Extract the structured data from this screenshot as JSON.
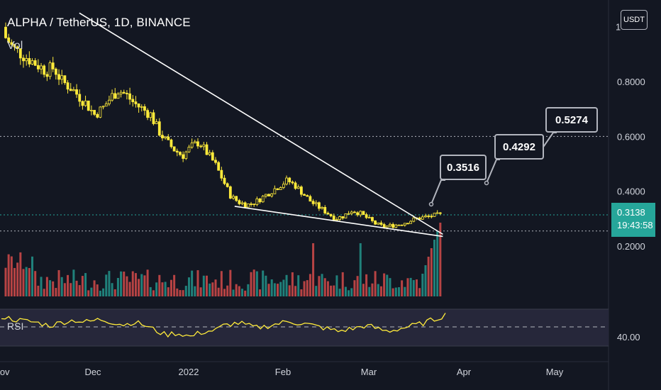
{
  "header": {
    "title": "ALPHA / TetherUS, 1D, BINANCE",
    "volume_label": "Vol",
    "rsi_label": "RSI",
    "currency_button": "USDT"
  },
  "last_price": {
    "value": "0.3138",
    "countdown": "19:43:58"
  },
  "colors": {
    "background": "#131722",
    "up": "#26a69a",
    "down": "#ef5350",
    "candle": "#ffeb3b",
    "rsi_line": "#ffeb3b",
    "trendline": "#ffffff"
  },
  "chart_data": {
    "type": "candlestick",
    "symbol": "ALPHA / TetherUS",
    "interval": "1D",
    "exchange": "BINANCE",
    "y_axis_labels": [
      "1",
      "0.8000",
      "0.6000",
      "0.4000",
      "0.2000"
    ],
    "ylim": [
      0.13,
      1.05
    ],
    "x_axis_labels": [
      "Nov",
      "Dec",
      "2022",
      "Feb",
      "Mar",
      "Apr",
      "May"
    ],
    "horizontal_levels": [
      0.6,
      0.3138,
      0.255
    ],
    "closes_sampled": [
      0.96,
      0.92,
      0.9,
      0.88,
      0.86,
      0.84,
      0.85,
      0.8,
      0.78,
      0.75,
      0.72,
      0.68,
      0.7,
      0.74,
      0.77,
      0.75,
      0.72,
      0.7,
      0.68,
      0.62,
      0.58,
      0.55,
      0.53,
      0.56,
      0.58,
      0.54,
      0.5,
      0.44,
      0.38,
      0.36,
      0.35,
      0.36,
      0.38,
      0.4,
      0.42,
      0.44,
      0.42,
      0.39,
      0.36,
      0.34,
      0.32,
      0.3,
      0.31,
      0.33,
      0.32,
      0.3,
      0.28,
      0.27,
      0.275,
      0.28,
      0.29,
      0.3,
      0.305,
      0.31,
      0.3138
    ],
    "trendlines": [
      {
        "name": "upper",
        "from": [
          0.12,
          1.05
        ],
        "to": [
          0.67,
          0.243
        ]
      },
      {
        "name": "lower",
        "from": [
          0.355,
          0.345
        ],
        "to": [
          0.67,
          0.235
        ]
      }
    ],
    "target_labels": [
      "0.3516",
      "0.4292",
      "0.5274"
    ],
    "rsi": {
      "reference_label": "40.00",
      "values_sampled": [
        52,
        50,
        48,
        47,
        46,
        44,
        42,
        45,
        47,
        48,
        46,
        47,
        49,
        47,
        45,
        43,
        46,
        44,
        40,
        36,
        32,
        34,
        33,
        30,
        34,
        36,
        37,
        42,
        44,
        45,
        42,
        40,
        41,
        43,
        45,
        47,
        45,
        44,
        42,
        40,
        38,
        36,
        38,
        39,
        42,
        41,
        38,
        36,
        38,
        40,
        42,
        44,
        47,
        50,
        54
      ]
    }
  }
}
